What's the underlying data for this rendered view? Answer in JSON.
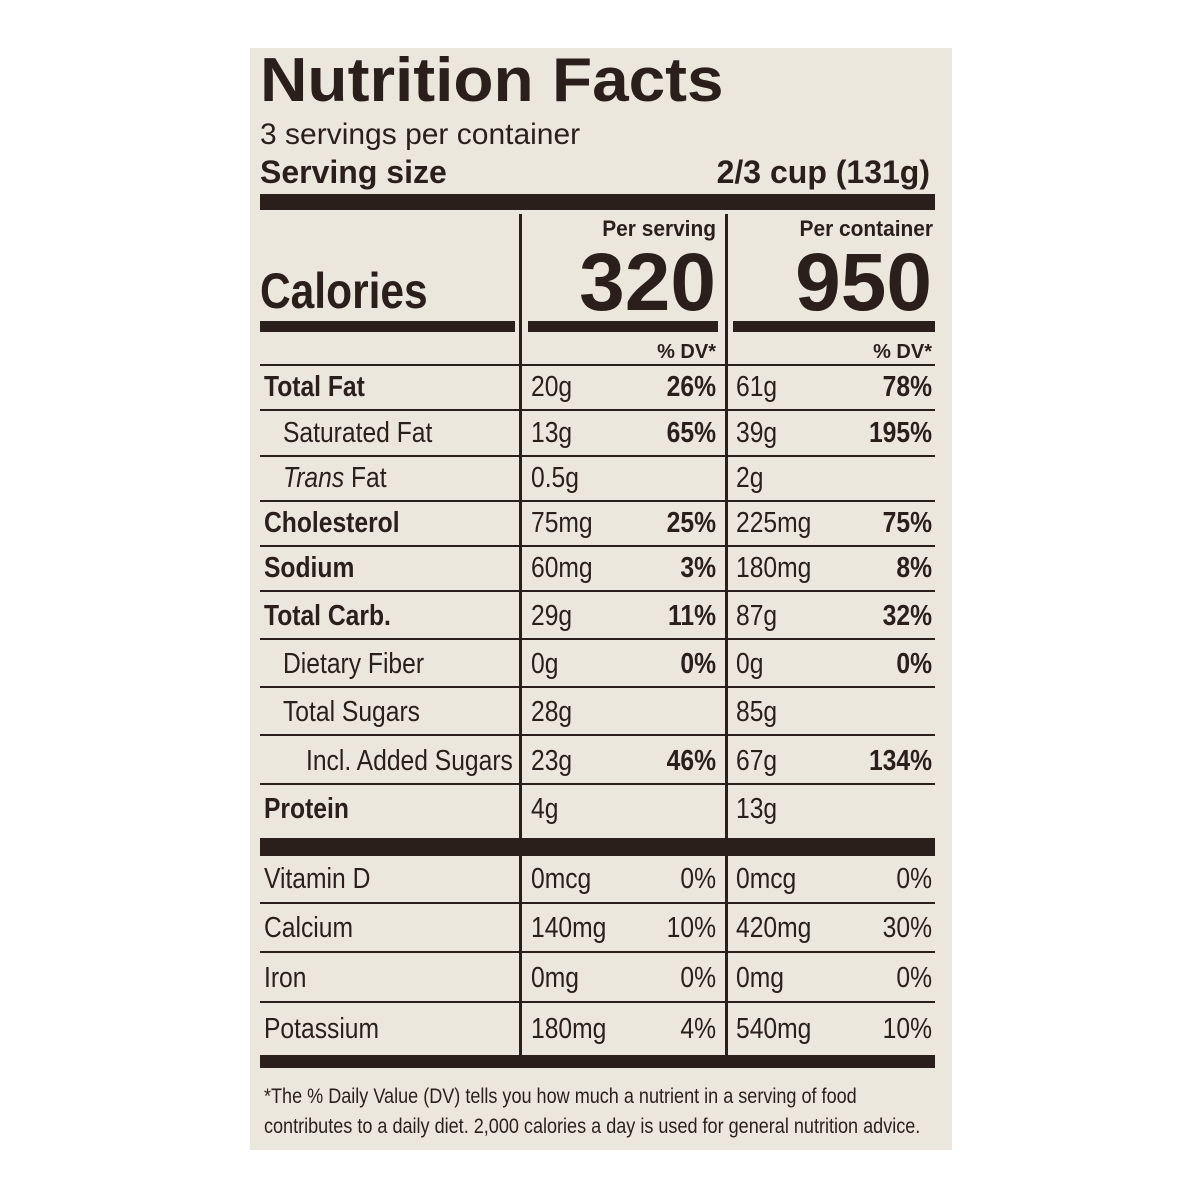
{
  "title": "Nutrition Facts",
  "servings": "3 servings per container",
  "serving_size": {
    "label": "Serving size",
    "value": "2/3 cup (131g)"
  },
  "columns": [
    "Per serving",
    "Per container"
  ],
  "calories": {
    "label": "Calories",
    "values": [
      "320",
      "950"
    ]
  },
  "dv_header": [
    "% DV*",
    "% DV*"
  ],
  "nutrients": [
    {
      "name": "Total Fat",
      "indent": 0,
      "bold": true,
      "values": [
        "20g",
        "26%",
        "61g",
        "78%"
      ]
    },
    {
      "name": "Saturated Fat",
      "indent": 1,
      "bold": false,
      "values": [
        "13g",
        "65%",
        "39g",
        "195%"
      ]
    },
    {
      "name": "Trans Fat",
      "indent": 1,
      "bold": false,
      "style": "italic-first-word",
      "values": [
        "0.5g",
        null,
        "2g",
        null
      ]
    },
    {
      "name": "Cholesterol",
      "indent": 0,
      "bold": true,
      "values": [
        "75mg",
        "25%",
        "225mg",
        "75%"
      ]
    },
    {
      "name": "Sodium",
      "indent": 0,
      "bold": true,
      "values": [
        "60mg",
        "3%",
        "180mg",
        "8%"
      ]
    },
    {
      "name": "Total Carb.",
      "indent": 0,
      "bold": true,
      "values": [
        "29g",
        "11%",
        "87g",
        "32%"
      ]
    },
    {
      "name": "Dietary Fiber",
      "indent": 1,
      "bold": false,
      "values": [
        "0g",
        "0%",
        "0g",
        "0%"
      ]
    },
    {
      "name": "Total Sugars",
      "indent": 1,
      "bold": false,
      "values": [
        "28g",
        null,
        "85g",
        null
      ]
    },
    {
      "name": "Incl. Added Sugars",
      "indent": 2,
      "bold": false,
      "values": [
        "23g",
        "46%",
        "67g",
        "134%"
      ]
    },
    {
      "name": "Protein",
      "indent": 0,
      "bold": true,
      "values": [
        "4g",
        null,
        "13g",
        null
      ]
    }
  ],
  "vitamins": [
    {
      "name": "Vitamin D",
      "values": [
        "0mcg",
        "0%",
        "0mcg",
        "0%"
      ]
    },
    {
      "name": "Calcium",
      "values": [
        "140mg",
        "10%",
        "420mg",
        "30%"
      ]
    },
    {
      "name": "Iron",
      "values": [
        "0mg",
        "0%",
        "0mg",
        "0%"
      ]
    },
    {
      "name": "Potassium",
      "values": [
        "180mg",
        "4%",
        "540mg",
        "10%"
      ]
    }
  ],
  "footnote": [
    "*The % Daily Value (DV) tells you how much a nutrient in a serving of food",
    "contributes to a daily diet. 2,000 calories a day is used for general nutrition advice."
  ]
}
